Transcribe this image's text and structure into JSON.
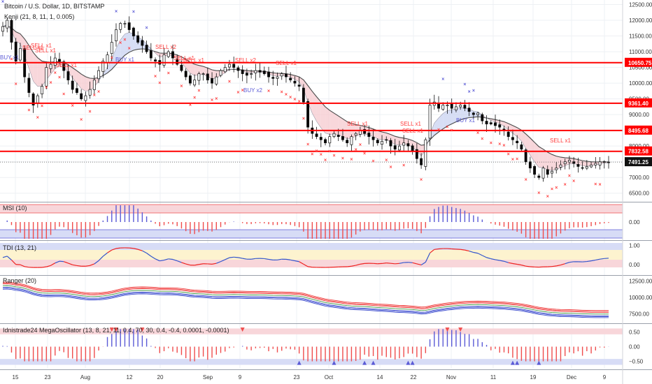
{
  "header": {
    "symbol_line": "Bitcoin / U.S. Dollar, 1D, BITSTAMP",
    "indicator_line": "Kenji (21, 8, 11, 1, 0.005)"
  },
  "colors": {
    "up_candle": "#ffffff",
    "down_candle": "#000000",
    "level_line": "#ff0000",
    "sell_marker": "#ff3b3b",
    "buy_marker": "#5b5bd6",
    "band_fill_bear": "#f6c9cf",
    "band_fill_bull": "#c9d3f2",
    "msi_up": "#5b5bd6",
    "msi_down": "#ef4d4d",
    "tdi_line": "#3355cc",
    "tdi_line_hot": "#ee2222",
    "ranger_upper": "#ee3333",
    "ranger_lower": "#3344cc",
    "ranger_mid": "#2a8a2a"
  },
  "chart_data": [
    {
      "type": "candlestick",
      "name": "Bitcoin / U.S. Dollar, 1D, BITSTAMP",
      "price_axis_ticks": [
        6500,
        7000,
        7500,
        8000,
        8500,
        9000,
        9500,
        10000,
        10500,
        11000,
        11500,
        12000,
        12500
      ],
      "price_axis_labels": [
        "6500.00",
        "7000.00",
        "7500.00",
        "8000.00",
        "8500.00",
        "9000.00",
        "9500.00",
        "10000.00",
        "10500.00",
        "11000.00",
        "11500.00",
        "12000.00",
        "12500.00"
      ],
      "ylim": [
        6250,
        12600
      ],
      "x_ticks": [
        "15",
        "23",
        "Aug",
        "12",
        "20",
        "Sep",
        "9",
        "23",
        "Oct",
        "14",
        "22",
        "Nov",
        "11",
        "19",
        "Dec",
        "9"
      ],
      "levels": [
        {
          "label": "10650.75",
          "value": 10650.75
        },
        {
          "label": "9361.40",
          "value": 9361.4
        },
        {
          "label": "8495.68",
          "value": 8495.68
        },
        {
          "label": "7832.58",
          "value": 7832.58
        }
      ],
      "last_price": {
        "label": "7491.25",
        "value": 7491.25
      },
      "closes": [
        11800,
        12000,
        11300,
        10700,
        11100,
        10200,
        9700,
        9300,
        9600,
        9900,
        10500,
        10600,
        10800,
        10700,
        10400,
        10100,
        9800,
        9700,
        9500,
        9600,
        9800,
        10100,
        10400,
        10700,
        10900,
        11300,
        11700,
        11900,
        11900,
        11700,
        11500,
        11300,
        11200,
        11000,
        10800,
        10700,
        10600,
        10900,
        11000,
        10800,
        10600,
        10400,
        10200,
        10000,
        10100,
        10300,
        10300,
        10100,
        10000,
        10200,
        10400,
        10500,
        10600,
        10500,
        10400,
        10300,
        10250,
        10300,
        10400,
        10350,
        10300,
        10200,
        10150,
        10200,
        10300,
        10200,
        10100,
        10000,
        9900,
        9400,
        8600,
        8400,
        8300,
        8200,
        8100,
        8300,
        8400,
        8300,
        8200,
        8100,
        8300,
        8400,
        8500,
        8400,
        8300,
        8200,
        8100,
        8150,
        8200,
        8000,
        7900,
        8000,
        8100,
        8000,
        7850,
        7600,
        7400,
        8200,
        9300,
        9400,
        9200,
        9300,
        9300,
        9200,
        9250,
        9300,
        9200,
        9100,
        9000,
        9050,
        8800,
        8700,
        8700,
        8650,
        8600,
        8500,
        8300,
        8200,
        8100,
        7900,
        7500,
        7300,
        7100,
        7000,
        7300,
        7100,
        7200,
        7300,
        7400,
        7500,
        7550,
        7450,
        7350,
        7300,
        7350,
        7400,
        7450,
        7500,
        7500,
        7491
      ]
    },
    {
      "type": "bar",
      "name": "MSI (10)",
      "y_ticks": [
        0
      ],
      "y_tick_labels": [
        "0.00"
      ]
    },
    {
      "type": "line",
      "name": "TDI (13, 21)",
      "y_ticks": [
        1,
        0
      ],
      "y_tick_labels": [
        "1.00",
        "0.00"
      ],
      "ylim": [
        -0.5,
        1.2
      ]
    },
    {
      "type": "line",
      "name": "Ranger (20)",
      "y_ticks": [
        12500,
        10000,
        7500
      ],
      "y_tick_labels": [
        "12500.00",
        "10000.00",
        "7500.00"
      ],
      "ylim": [
        6200,
        13200
      ]
    },
    {
      "type": "bar",
      "name": "Idnistrade24 MegaOscillator (13, 8, 21, 11, 0.4, 70, 30, 0.4, -0.4, 0.0001, -0.0001)",
      "y_ticks": [
        0.5,
        0,
        -0.5
      ],
      "y_tick_labels": [
        "0.50",
        "0.00",
        "−0.50"
      ],
      "ylim": [
        -0.75,
        0.75
      ]
    }
  ],
  "signal_labels": [
    {
      "text": "SELL x1",
      "side": "sell"
    },
    {
      "text": "SELL x1",
      "side": "sell"
    },
    {
      "text": "SELL x1",
      "side": "sell"
    },
    {
      "text": "SELL x1",
      "side": "sell"
    },
    {
      "text": "SELL x2",
      "side": "sell"
    },
    {
      "text": "SELL x1",
      "side": "sell"
    },
    {
      "text": "SELL x1",
      "side": "sell"
    },
    {
      "text": "SELL x2",
      "side": "sell"
    },
    {
      "text": "SELL x1",
      "side": "sell"
    },
    {
      "text": "SELL x1",
      "side": "sell"
    },
    {
      "text": "SELL x1",
      "side": "sell"
    },
    {
      "text": "SELL x1",
      "side": "sell"
    },
    {
      "text": "SELL x1",
      "side": "sell"
    },
    {
      "text": "BUY x1",
      "side": "buy"
    },
    {
      "text": "BUY x1",
      "side": "buy"
    },
    {
      "text": "BUY x2",
      "side": "buy"
    },
    {
      "text": "BUY x1",
      "side": "buy"
    }
  ]
}
